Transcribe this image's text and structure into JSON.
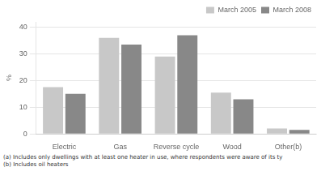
{
  "chart_data": {
    "type": "bar",
    "y_label": "%",
    "categories": [
      "Electric",
      "Gas",
      "Reverse cycle",
      "Wood",
      "Other(b)"
    ],
    "series": [
      {
        "name": "March 2005",
        "color": "#c8c8c8",
        "values": [
          17.5,
          36.0,
          29.0,
          15.5,
          2.0
        ]
      },
      {
        "name": "March 2008",
        "color": "#888888",
        "values": [
          15.0,
          33.5,
          37.0,
          13.0,
          1.5
        ]
      }
    ],
    "ylim": [
      0,
      42
    ],
    "yticks": [
      0,
      10,
      20,
      30,
      40
    ],
    "grid": true,
    "legend": "upper right",
    "annotations": [
      "(a) Includes only dwellings with at least one heater in use, where respondents were aware of its ty",
      "(b) Includes oil heaters"
    ]
  }
}
